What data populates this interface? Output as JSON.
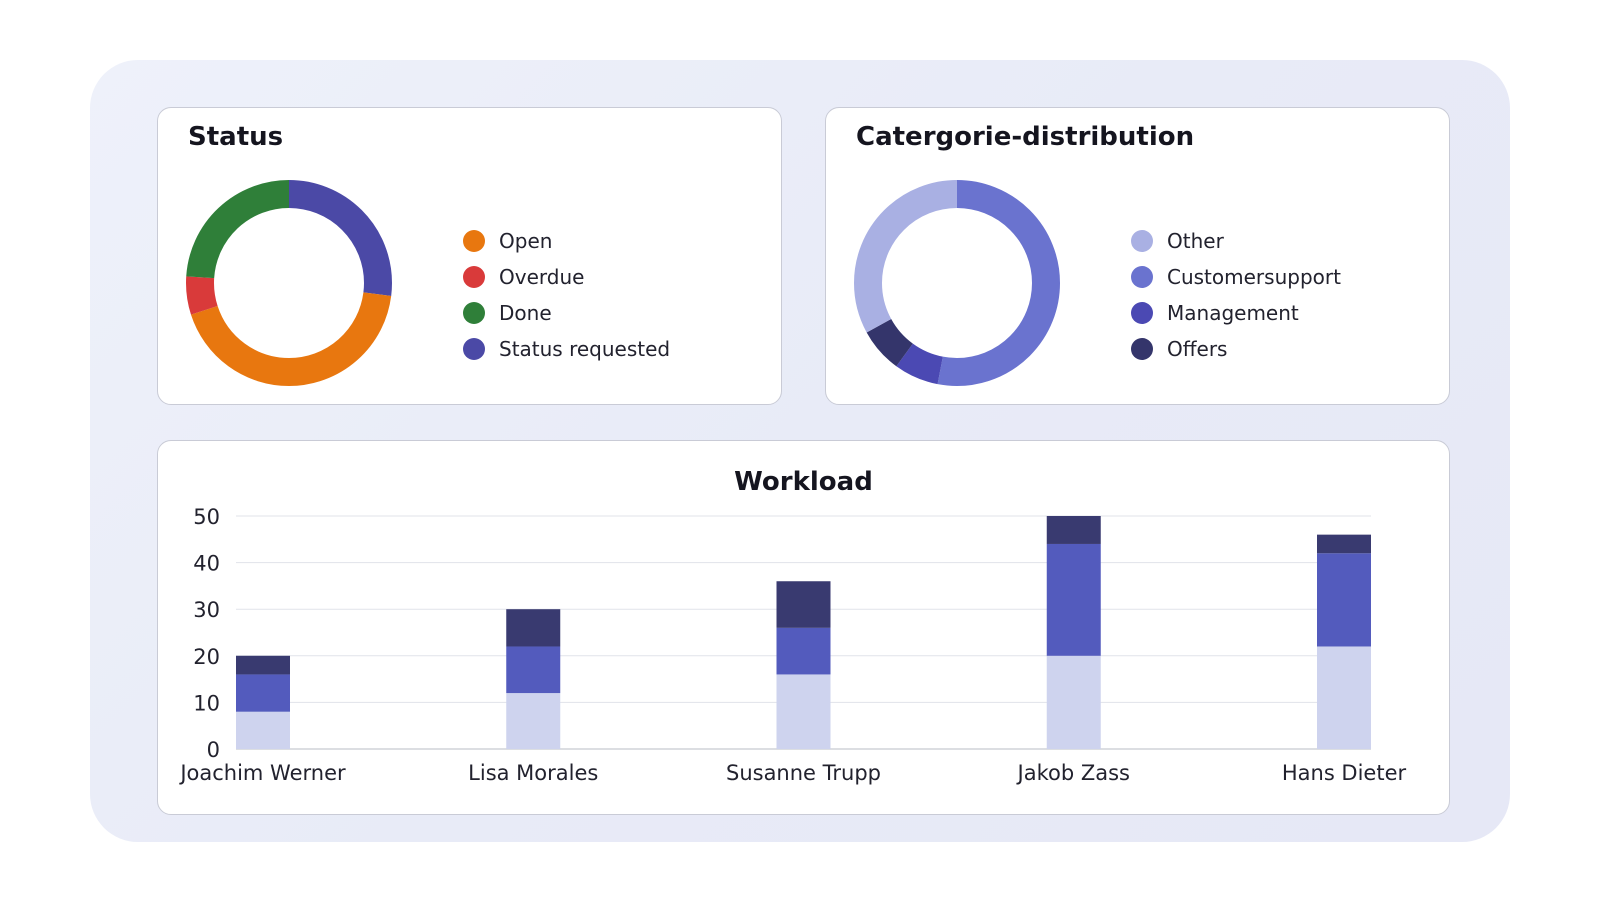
{
  "cards": {
    "status": {
      "title": "Status",
      "legend": [
        {
          "label": "Open",
          "color": "#e8770f"
        },
        {
          "label": "Overdue",
          "color": "#d93a3a"
        },
        {
          "label": "Done",
          "color": "#2f7f39"
        },
        {
          "label": "Status requested",
          "color": "#4b49a6"
        }
      ]
    },
    "category": {
      "title": "Catergorie-distribution",
      "legend": [
        {
          "label": "Other",
          "color": "#a9b0e3"
        },
        {
          "label": "Customersupport",
          "color": "#6a73cf"
        },
        {
          "label": "Management",
          "color": "#4b49b3"
        },
        {
          "label": "Offers",
          "color": "#34356b"
        }
      ]
    },
    "workload": {
      "title": "Workload"
    }
  },
  "chart_data": [
    {
      "type": "pie",
      "variant": "donut",
      "title": "Status",
      "categories": [
        "Status requested",
        "Open",
        "Overdue",
        "Done"
      ],
      "values": [
        27,
        43,
        6,
        24
      ],
      "colors": [
        "#4b49a6",
        "#e8770f",
        "#d93a3a",
        "#2f7f39"
      ],
      "legend_position": "right"
    },
    {
      "type": "pie",
      "variant": "donut",
      "title": "Catergorie-distribution",
      "categories": [
        "Customersupport",
        "Management",
        "Offers",
        "Other"
      ],
      "values": [
        53,
        7,
        7,
        33
      ],
      "colors": [
        "#6a73cf",
        "#4b49b3",
        "#34356b",
        "#a9b0e3"
      ],
      "legend_position": "right"
    },
    {
      "type": "bar",
      "stacked": true,
      "title": "Workload",
      "categories": [
        "Joachim Werner",
        "Lisa Morales",
        "Susanne Trupp",
        "Jakob Zass",
        "Hans Dieter"
      ],
      "series": [
        {
          "values": [
            8,
            12,
            16,
            20,
            22
          ],
          "color": "#ced3ee"
        },
        {
          "values": [
            8,
            10,
            10,
            24,
            20
          ],
          "color": "#535bbd"
        },
        {
          "values": [
            4,
            8,
            10,
            6,
            4
          ],
          "color": "#393a70"
        }
      ],
      "ylim": [
        0,
        50
      ],
      "yticks": [
        0,
        10,
        20,
        30,
        40,
        50
      ],
      "grid": true
    }
  ]
}
